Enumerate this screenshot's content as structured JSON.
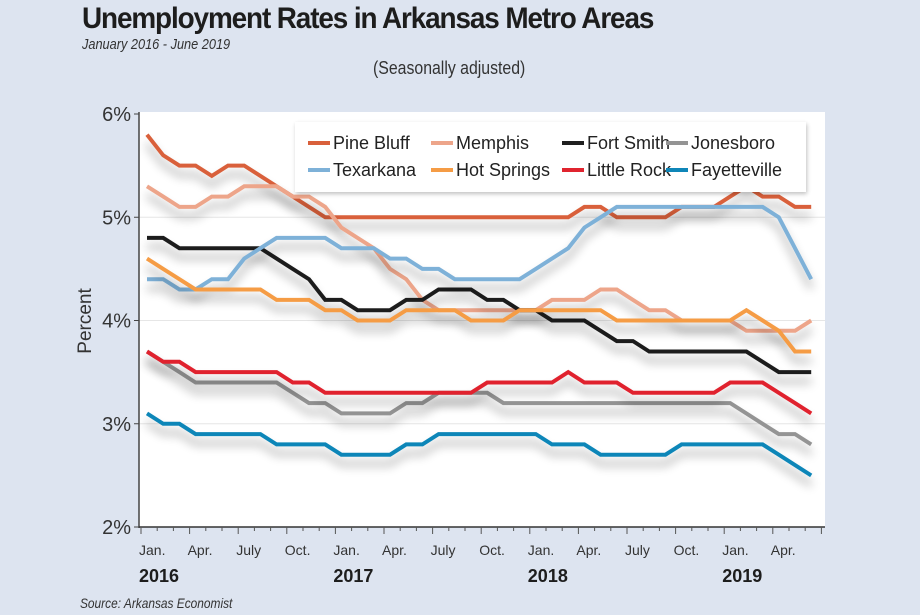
{
  "chart_data": {
    "type": "line",
    "title": "Unemployment Rates in Arkansas Metro Areas",
    "subtitle": "January 2016 - June 2019",
    "note": "(Seasonally adjusted)",
    "source": "Source: Arkansas Economist",
    "ylabel": "Percent",
    "xlabel": "",
    "ylim": [
      2,
      6
    ],
    "yticks": [
      2,
      3,
      4,
      5,
      6
    ],
    "ytick_labels": [
      "2%",
      "3%",
      "4%",
      "5%",
      "6%"
    ],
    "x_start": "Jan 2016",
    "x_end": "Jun 2019",
    "month_count": 42,
    "xtick_labels": [
      "Jan.",
      "Apr.",
      "July",
      "Oct.",
      "Jan.",
      "Apr.",
      "July",
      "Oct.",
      "Jan.",
      "Apr.",
      "July",
      "Oct.",
      "Jan.",
      "Apr."
    ],
    "year_labels": [
      {
        "label": "2016",
        "month_index": 0
      },
      {
        "label": "2017",
        "month_index": 12
      },
      {
        "label": "2018",
        "month_index": 24
      },
      {
        "label": "2019",
        "month_index": 36
      }
    ],
    "grid": true,
    "legend_position": "top-right",
    "series": [
      {
        "name": "Pine Bluff",
        "color": "#d9603b",
        "values": [
          5.8,
          5.6,
          5.5,
          5.5,
          5.4,
          5.5,
          5.5,
          5.4,
          5.3,
          5.2,
          5.1,
          5.0,
          5.0,
          5.0,
          5.0,
          5.0,
          5.0,
          5.0,
          5.0,
          5.0,
          5.0,
          5.0,
          5.0,
          5.0,
          5.0,
          5.0,
          5.0,
          5.1,
          5.1,
          5.0,
          5.0,
          5.0,
          5.0,
          5.1,
          5.1,
          5.1,
          5.2,
          5.3,
          5.2,
          5.2,
          5.1,
          5.1
        ]
      },
      {
        "name": "Memphis",
        "color": "#eda58a",
        "values": [
          5.3,
          5.2,
          5.1,
          5.1,
          5.2,
          5.2,
          5.3,
          5.3,
          5.3,
          5.2,
          5.2,
          5.1,
          4.9,
          4.8,
          4.7,
          4.5,
          4.4,
          4.2,
          4.1,
          4.1,
          4.1,
          4.1,
          4.1,
          4.1,
          4.1,
          4.2,
          4.2,
          4.2,
          4.3,
          4.3,
          4.2,
          4.1,
          4.1,
          4.0,
          4.0,
          4.0,
          4.0,
          3.9,
          3.9,
          3.9,
          3.9,
          4.0
        ]
      },
      {
        "name": "Fort Smith",
        "color": "#1f1f1f",
        "values": [
          4.8,
          4.8,
          4.7,
          4.7,
          4.7,
          4.7,
          4.7,
          4.7,
          4.6,
          4.5,
          4.4,
          4.2,
          4.2,
          4.1,
          4.1,
          4.1,
          4.2,
          4.2,
          4.3,
          4.3,
          4.3,
          4.2,
          4.2,
          4.1,
          4.1,
          4.0,
          4.0,
          4.0,
          3.9,
          3.8,
          3.8,
          3.7,
          3.7,
          3.7,
          3.7,
          3.7,
          3.7,
          3.7,
          3.6,
          3.5,
          3.5,
          3.5
        ]
      },
      {
        "name": "Jonesboro",
        "color": "#949494",
        "values": [
          3.7,
          3.6,
          3.5,
          3.4,
          3.4,
          3.4,
          3.4,
          3.4,
          3.4,
          3.3,
          3.2,
          3.2,
          3.1,
          3.1,
          3.1,
          3.1,
          3.2,
          3.2,
          3.3,
          3.3,
          3.3,
          3.3,
          3.2,
          3.2,
          3.2,
          3.2,
          3.2,
          3.2,
          3.2,
          3.2,
          3.2,
          3.2,
          3.2,
          3.2,
          3.2,
          3.2,
          3.2,
          3.1,
          3.0,
          2.9,
          2.9,
          2.8
        ]
      },
      {
        "name": "Texarkana",
        "color": "#7eb1d8",
        "values": [
          4.4,
          4.4,
          4.3,
          4.3,
          4.4,
          4.4,
          4.6,
          4.7,
          4.8,
          4.8,
          4.8,
          4.8,
          4.7,
          4.7,
          4.7,
          4.6,
          4.6,
          4.5,
          4.5,
          4.4,
          4.4,
          4.4,
          4.4,
          4.4,
          4.5,
          4.6,
          4.7,
          4.9,
          5.0,
          5.1,
          5.1,
          5.1,
          5.1,
          5.1,
          5.1,
          5.1,
          5.1,
          5.1,
          5.1,
          5.0,
          4.7,
          4.4
        ]
      },
      {
        "name": "Hot Springs",
        "color": "#f59c45",
        "values": [
          4.6,
          4.5,
          4.4,
          4.3,
          4.3,
          4.3,
          4.3,
          4.3,
          4.2,
          4.2,
          4.2,
          4.1,
          4.1,
          4.0,
          4.0,
          4.0,
          4.1,
          4.1,
          4.1,
          4.1,
          4.0,
          4.0,
          4.0,
          4.1,
          4.1,
          4.1,
          4.1,
          4.1,
          4.1,
          4.0,
          4.0,
          4.0,
          4.0,
          4.0,
          4.0,
          4.0,
          4.0,
          4.1,
          4.0,
          3.9,
          3.7,
          3.7
        ]
      },
      {
        "name": "Little Rock",
        "color": "#e0242f",
        "values": [
          3.7,
          3.6,
          3.6,
          3.5,
          3.5,
          3.5,
          3.5,
          3.5,
          3.5,
          3.4,
          3.4,
          3.3,
          3.3,
          3.3,
          3.3,
          3.3,
          3.3,
          3.3,
          3.3,
          3.3,
          3.3,
          3.4,
          3.4,
          3.4,
          3.4,
          3.4,
          3.5,
          3.4,
          3.4,
          3.4,
          3.3,
          3.3,
          3.3,
          3.3,
          3.3,
          3.3,
          3.4,
          3.4,
          3.4,
          3.3,
          3.2,
          3.1
        ]
      },
      {
        "name": "Fayetteville",
        "color": "#0f86b8",
        "values": [
          3.1,
          3.0,
          3.0,
          2.9,
          2.9,
          2.9,
          2.9,
          2.9,
          2.8,
          2.8,
          2.8,
          2.8,
          2.7,
          2.7,
          2.7,
          2.7,
          2.8,
          2.8,
          2.9,
          2.9,
          2.9,
          2.9,
          2.9,
          2.9,
          2.9,
          2.8,
          2.8,
          2.8,
          2.7,
          2.7,
          2.7,
          2.7,
          2.7,
          2.8,
          2.8,
          2.8,
          2.8,
          2.8,
          2.8,
          2.7,
          2.6,
          2.5
        ]
      }
    ]
  }
}
